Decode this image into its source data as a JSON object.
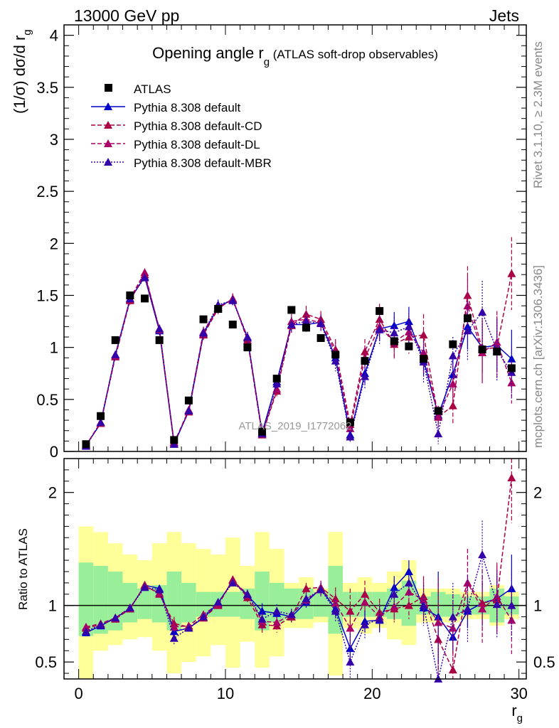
{
  "header": {
    "left": "13000 GeV pp",
    "right": "Jets"
  },
  "side_labels": {
    "rivet": "Rivet 3.1.10, ≥ 2.3M events",
    "mcplots": "mcplots.cern.ch [arXiv:1306.3436]"
  },
  "watermark": "ATLAS_2019_I1772062",
  "chart_data": [
    {
      "type": "scatter",
      "title": "Opening angle r",
      "title_sub": "g",
      "title_note": " (ATLAS soft-drop observables)",
      "ylabel": "(1/σ) dσ/d r",
      "ylabel_sub": "g",
      "xlim": [
        -1,
        30.5
      ],
      "ylim": [
        0,
        4.1
      ],
      "yticks": [
        "0",
        "0.5",
        "1",
        "1.5",
        "2",
        "2.5",
        "3",
        "3.5",
        "4"
      ],
      "legend_position": "top-left",
      "x": [
        0.5,
        1.5,
        2.5,
        3.5,
        4.5,
        5.5,
        6.5,
        7.5,
        8.5,
        9.5,
        10.5,
        11.5,
        12.5,
        13.5,
        14.5,
        15.5,
        16.5,
        17.5,
        18.5,
        19.5,
        20.5,
        21.5,
        22.5,
        23.5,
        24.5,
        25.5,
        26.5,
        27.5,
        28.5,
        29.5
      ],
      "series": [
        {
          "name": "ATLAS",
          "color": "#000000",
          "marker": "square",
          "style": "none",
          "values": [
            0.07,
            0.34,
            1.07,
            1.5,
            1.47,
            1.07,
            0.11,
            0.49,
            1.27,
            1.37,
            1.22,
            1.0,
            0.19,
            0.7,
            1.36,
            1.19,
            1.09,
            0.93,
            0.28,
            0.87,
            1.35,
            1.06,
            1.01,
            0.89,
            0.39,
            1.03,
            1.28,
            0.98,
            0.96,
            0.8
          ]
        },
        {
          "name": "Pythia 8.308 default",
          "color": "#0000cc",
          "marker": "triangle",
          "style": "solid",
          "values": [
            0.06,
            0.27,
            0.93,
            1.46,
            1.68,
            1.16,
            0.07,
            0.39,
            1.13,
            1.39,
            1.46,
            1.09,
            0.18,
            0.67,
            1.22,
            1.22,
            1.24,
            0.9,
            0.16,
            0.75,
            1.18,
            1.21,
            1.25,
            0.88,
            0.35,
            0.74,
            1.2,
            1.0,
            1.02,
            0.89
          ],
          "errors": [
            0.01,
            0.02,
            0.03,
            0.04,
            0.04,
            0.04,
            0.01,
            0.03,
            0.05,
            0.05,
            0.05,
            0.05,
            0.02,
            0.05,
            0.07,
            0.07,
            0.08,
            0.08,
            0.03,
            0.1,
            0.12,
            0.13,
            0.14,
            0.15,
            0.08,
            0.18,
            0.22,
            0.25,
            0.25,
            0.28
          ]
        },
        {
          "name": "Pythia 8.308 default-CD",
          "color": "#aa0044",
          "marker": "triangle",
          "style": "dashed",
          "values": [
            0.06,
            0.27,
            0.91,
            1.45,
            1.7,
            1.18,
            0.09,
            0.38,
            1.12,
            1.37,
            1.47,
            1.07,
            0.16,
            0.58,
            1.21,
            1.32,
            1.27,
            0.98,
            0.26,
            0.96,
            1.27,
            1.03,
            1.1,
            1.12,
            0.33,
            0.44,
            1.5,
            0.98,
            1.0,
            1.71
          ],
          "errors": [
            0.01,
            0.02,
            0.03,
            0.04,
            0.04,
            0.04,
            0.01,
            0.03,
            0.05,
            0.05,
            0.05,
            0.05,
            0.02,
            0.05,
            0.07,
            0.08,
            0.08,
            0.1,
            0.05,
            0.12,
            0.15,
            0.15,
            0.16,
            0.2,
            0.1,
            0.18,
            0.28,
            0.3,
            0.3,
            0.35
          ]
        },
        {
          "name": "Pythia 8.308 default-DL",
          "color": "#aa0066",
          "marker": "triangle",
          "style": "dashed",
          "values": [
            0.06,
            0.28,
            0.92,
            1.47,
            1.72,
            1.17,
            0.08,
            0.4,
            1.15,
            1.38,
            1.46,
            1.1,
            0.17,
            0.6,
            1.25,
            1.27,
            1.24,
            0.95,
            0.22,
            0.9,
            1.2,
            1.05,
            1.15,
            0.95,
            0.34,
            0.65,
            1.4,
            0.95,
            1.05,
            0.66
          ],
          "errors": [
            0.01,
            0.02,
            0.03,
            0.04,
            0.04,
            0.04,
            0.01,
            0.03,
            0.05,
            0.05,
            0.05,
            0.05,
            0.02,
            0.05,
            0.07,
            0.08,
            0.08,
            0.1,
            0.05,
            0.12,
            0.15,
            0.15,
            0.16,
            0.2,
            0.1,
            0.18,
            0.28,
            0.3,
            0.3,
            0.2
          ]
        },
        {
          "name": "Pythia 8.308 default-MBR",
          "color": "#3300aa",
          "marker": "triangle",
          "style": "dotted",
          "values": [
            0.05,
            0.28,
            0.93,
            1.47,
            1.67,
            1.18,
            0.07,
            0.39,
            1.14,
            1.41,
            1.45,
            1.1,
            0.17,
            0.65,
            1.22,
            1.25,
            1.23,
            0.87,
            0.14,
            0.72,
            1.17,
            1.14,
            1.2,
            0.86,
            0.17,
            0.92,
            1.16,
            1.34,
            0.97,
            0.76
          ],
          "errors": [
            0.01,
            0.02,
            0.03,
            0.04,
            0.04,
            0.04,
            0.01,
            0.03,
            0.05,
            0.05,
            0.05,
            0.05,
            0.02,
            0.05,
            0.07,
            0.08,
            0.08,
            0.1,
            0.05,
            0.12,
            0.15,
            0.15,
            0.16,
            0.2,
            0.1,
            0.18,
            0.28,
            0.3,
            0.3,
            0.25
          ]
        }
      ]
    },
    {
      "type": "scatter",
      "ylabel": "Ratio to ATLAS",
      "xlabel": "r",
      "xlabel_sub": "g",
      "xlim": [
        -1,
        30.5
      ],
      "ylim": [
        0.35,
        2.3
      ],
      "xticks": [
        "0",
        "10",
        "20",
        "30"
      ],
      "yticks": [
        "0.5",
        "1",
        "2"
      ],
      "reference_line": 1,
      "band_inner_color": "#99ee99",
      "band_outer_color": "#ffff99",
      "band_inner": [
        [
          0.73,
          1.38
        ],
        [
          0.75,
          1.35
        ],
        [
          0.78,
          1.3
        ],
        [
          0.85,
          1.2
        ],
        [
          0.88,
          1.15
        ],
        [
          0.85,
          1.18
        ],
        [
          0.78,
          1.3
        ],
        [
          0.85,
          1.2
        ],
        [
          0.9,
          1.12
        ],
        [
          0.9,
          1.12
        ],
        [
          0.9,
          1.12
        ],
        [
          0.88,
          1.15
        ],
        [
          0.78,
          1.3
        ],
        [
          0.85,
          1.2
        ],
        [
          0.88,
          1.15
        ],
        [
          0.88,
          1.15
        ],
        [
          0.9,
          1.12
        ],
        [
          0.75,
          1.35
        ],
        [
          0.9,
          1.12
        ],
        [
          0.9,
          1.12
        ],
        [
          0.9,
          1.12
        ],
        [
          0.88,
          1.15
        ],
        [
          0.82,
          1.22
        ],
        [
          0.92,
          1.08
        ],
        [
          0.9,
          1.12
        ],
        [
          0.9,
          1.1
        ],
        [
          0.92,
          1.08
        ],
        [
          0.92,
          1.08
        ],
        [
          0.85,
          1.15
        ],
        [
          0.92,
          1.08
        ]
      ],
      "band_outer": [
        [
          0.35,
          1.7
        ],
        [
          0.6,
          1.65
        ],
        [
          0.65,
          1.55
        ],
        [
          0.7,
          1.45
        ],
        [
          0.72,
          1.4
        ],
        [
          0.6,
          1.55
        ],
        [
          0.4,
          1.65
        ],
        [
          0.5,
          1.55
        ],
        [
          0.55,
          1.5
        ],
        [
          0.65,
          1.45
        ],
        [
          0.45,
          1.6
        ],
        [
          0.68,
          1.35
        ],
        [
          0.45,
          1.65
        ],
        [
          0.55,
          1.5
        ],
        [
          0.8,
          1.2
        ],
        [
          0.8,
          1.25
        ],
        [
          0.85,
          1.15
        ],
        [
          0.38,
          1.65
        ],
        [
          0.8,
          1.2
        ],
        [
          0.75,
          1.25
        ],
        [
          0.8,
          1.2
        ],
        [
          0.7,
          1.3
        ],
        [
          0.65,
          1.4
        ],
        [
          0.85,
          1.15
        ],
        [
          0.85,
          1.15
        ],
        [
          0.85,
          1.15
        ],
        [
          0.88,
          1.12
        ],
        [
          0.88,
          1.12
        ],
        [
          0.82,
          1.18
        ],
        [
          0.88,
          1.12
        ]
      ],
      "series": [
        {
          "name": "Pythia 8.308 default",
          "color": "#0000cc",
          "style": "solid",
          "values": [
            0.76,
            0.82,
            0.89,
            0.97,
            1.18,
            1.15,
            0.77,
            0.8,
            0.89,
            1.02,
            1.22,
            1.09,
            0.95,
            0.93,
            0.9,
            1.03,
            1.15,
            0.97,
            0.62,
            0.86,
            0.87,
            1.16,
            1.3,
            0.98,
            0.9,
            0.72,
            0.95,
            1.02,
            1.06,
            1.15
          ],
          "errors": [
            0.02,
            0.02,
            0.02,
            0.02,
            0.02,
            0.03,
            0.04,
            0.03,
            0.03,
            0.03,
            0.03,
            0.04,
            0.07,
            0.05,
            0.05,
            0.05,
            0.06,
            0.07,
            0.15,
            0.1,
            0.1,
            0.1,
            0.1,
            0.12,
            0.4,
            0.15,
            0.15,
            0.2,
            0.2,
            0.3
          ]
        },
        {
          "name": "Pythia 8.308 default-CD",
          "color": "#aa0044",
          "style": "dashed",
          "values": [
            0.8,
            0.83,
            0.88,
            0.97,
            1.18,
            1.1,
            0.84,
            0.81,
            0.89,
            1.0,
            1.23,
            1.07,
            0.83,
            0.82,
            0.9,
            1.15,
            1.16,
            1.06,
            0.95,
            1.1,
            0.94,
            0.97,
            1.0,
            1.08,
            0.7,
            0.43,
            1.2,
            1.02,
            1.05,
            2.13
          ],
          "errors": [
            0.02,
            0.02,
            0.02,
            0.02,
            0.02,
            0.03,
            0.06,
            0.03,
            0.03,
            0.03,
            0.03,
            0.04,
            0.08,
            0.06,
            0.05,
            0.05,
            0.06,
            0.1,
            0.2,
            0.12,
            0.12,
            0.12,
            0.12,
            0.18,
            0.5,
            0.4,
            0.3,
            0.3,
            0.3,
            0.4
          ]
        },
        {
          "name": "Pythia 8.308 default-DL",
          "color": "#aa0066",
          "style": "dashed",
          "values": [
            0.81,
            0.84,
            0.89,
            0.98,
            1.17,
            1.11,
            0.81,
            0.82,
            0.92,
            1.01,
            1.22,
            1.1,
            0.86,
            0.85,
            0.92,
            1.05,
            1.14,
            1.02,
            0.8,
            1.03,
            0.9,
            0.99,
            1.12,
            1.05,
            0.85,
            0.8,
            1.2,
            0.97,
            1.08,
            0.87
          ],
          "errors": [
            0.02,
            0.02,
            0.02,
            0.02,
            0.02,
            0.03,
            0.05,
            0.03,
            0.03,
            0.03,
            0.03,
            0.04,
            0.08,
            0.06,
            0.05,
            0.05,
            0.06,
            0.1,
            0.2,
            0.12,
            0.12,
            0.12,
            0.12,
            0.18,
            0.4,
            0.3,
            0.3,
            0.3,
            0.3,
            0.3
          ]
        },
        {
          "name": "Pythia 8.308 default-MBR",
          "color": "#3300aa",
          "style": "dotted",
          "values": [
            0.77,
            0.83,
            0.89,
            0.98,
            1.16,
            1.14,
            0.71,
            0.8,
            0.9,
            1.03,
            1.2,
            1.1,
            0.88,
            0.95,
            0.92,
            1.06,
            1.14,
            0.95,
            0.5,
            0.83,
            0.88,
            1.1,
            1.2,
            1.0,
            0.35,
            0.9,
            0.97,
            1.45,
            1.01,
            1.0
          ],
          "errors": [
            0.02,
            0.02,
            0.02,
            0.02,
            0.02,
            0.03,
            0.06,
            0.03,
            0.03,
            0.03,
            0.03,
            0.04,
            0.08,
            0.06,
            0.05,
            0.05,
            0.06,
            0.1,
            0.25,
            0.12,
            0.12,
            0.12,
            0.12,
            0.18,
            0.5,
            0.3,
            0.3,
            0.3,
            0.3,
            0.3
          ]
        }
      ]
    }
  ]
}
